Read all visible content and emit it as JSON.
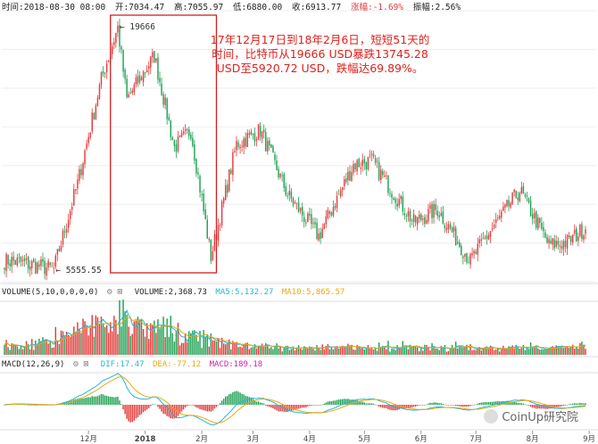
{
  "info": {
    "time": "时间:2018-08-30 08:00",
    "open": "开:7034.47",
    "high": "高:7055.97",
    "low": "低:6880.00",
    "close": "收:6913.77",
    "change": "涨幅:-1.69%",
    "amplitude": "振幅:2.56%"
  },
  "annotation": {
    "line1": "17年12月17日到18年2月6日，短短51天的",
    "line2": "时间，比特币从19666 USD暴跌13745.28",
    "line3": "USD至5920.72 USD，跌幅达69.89%。"
  },
  "volume_panel": {
    "title": "VOLUME(5,10,0,0,0,0)",
    "volume": "VOLUME:2,368.73",
    "ma5": "MA5:5,132.27",
    "ma10": "MA10:5,865.57"
  },
  "macd_panel": {
    "title": "MACD(12,26,9)",
    "dif": "DIF:17.47",
    "dea": "DEA:-77.12",
    "macd": "MACD:189.18"
  },
  "watermark": "CoinUp研究院",
  "colors": {
    "up": "#e23c3c",
    "down": "#1fa152",
    "annotation": "#e0201c",
    "ma5": "#23b8d0",
    "ma10": "#e6a817",
    "macd": "#cc22aa"
  },
  "chart_data": {
    "type": "candlestick",
    "x_ticks": [
      "12月",
      "2018",
      "2月",
      "3月",
      "4月",
      "5月",
      "6月",
      "7月",
      "8月",
      "9月"
    ],
    "price_labels": {
      "high_marker": "19666",
      "low_marker": "5555.55"
    },
    "price_anchor_points": [
      [
        "2017-10-20",
        5800
      ],
      [
        "2017-11-12",
        5555.55
      ],
      [
        "2017-11-25",
        8700
      ],
      [
        "2017-12-08",
        15000
      ],
      [
        "2017-12-17",
        19666
      ],
      [
        "2017-12-22",
        13500
      ],
      [
        "2018-01-06",
        17000
      ],
      [
        "2018-01-17",
        10500
      ],
      [
        "2018-01-26",
        11500
      ],
      [
        "2018-02-06",
        5920.72
      ],
      [
        "2018-02-20",
        10700
      ],
      [
        "2018-03-05",
        11500
      ],
      [
        "2018-03-20",
        8200
      ],
      [
        "2018-04-06",
        6600
      ],
      [
        "2018-04-25",
        9600
      ],
      [
        "2018-05-05",
        9800
      ],
      [
        "2018-05-28",
        7100
      ],
      [
        "2018-06-10",
        7600
      ],
      [
        "2018-06-28",
        5800
      ],
      [
        "2018-07-08",
        6700
      ],
      [
        "2018-07-25",
        8400
      ],
      [
        "2018-08-10",
        6300
      ],
      [
        "2018-08-20",
        6400
      ],
      [
        "2018-08-30",
        6913.77
      ]
    ],
    "last_candle": {
      "date": "2018-08-30",
      "open": 7034.47,
      "high": 7055.97,
      "low": 6880.0,
      "close": 6913.77
    },
    "volume": {
      "last": 2368.73,
      "ma5": 5132.27,
      "ma10": 5865.57
    },
    "macd": {
      "dif": 17.47,
      "dea": -77.12,
      "macd": 189.18
    }
  }
}
